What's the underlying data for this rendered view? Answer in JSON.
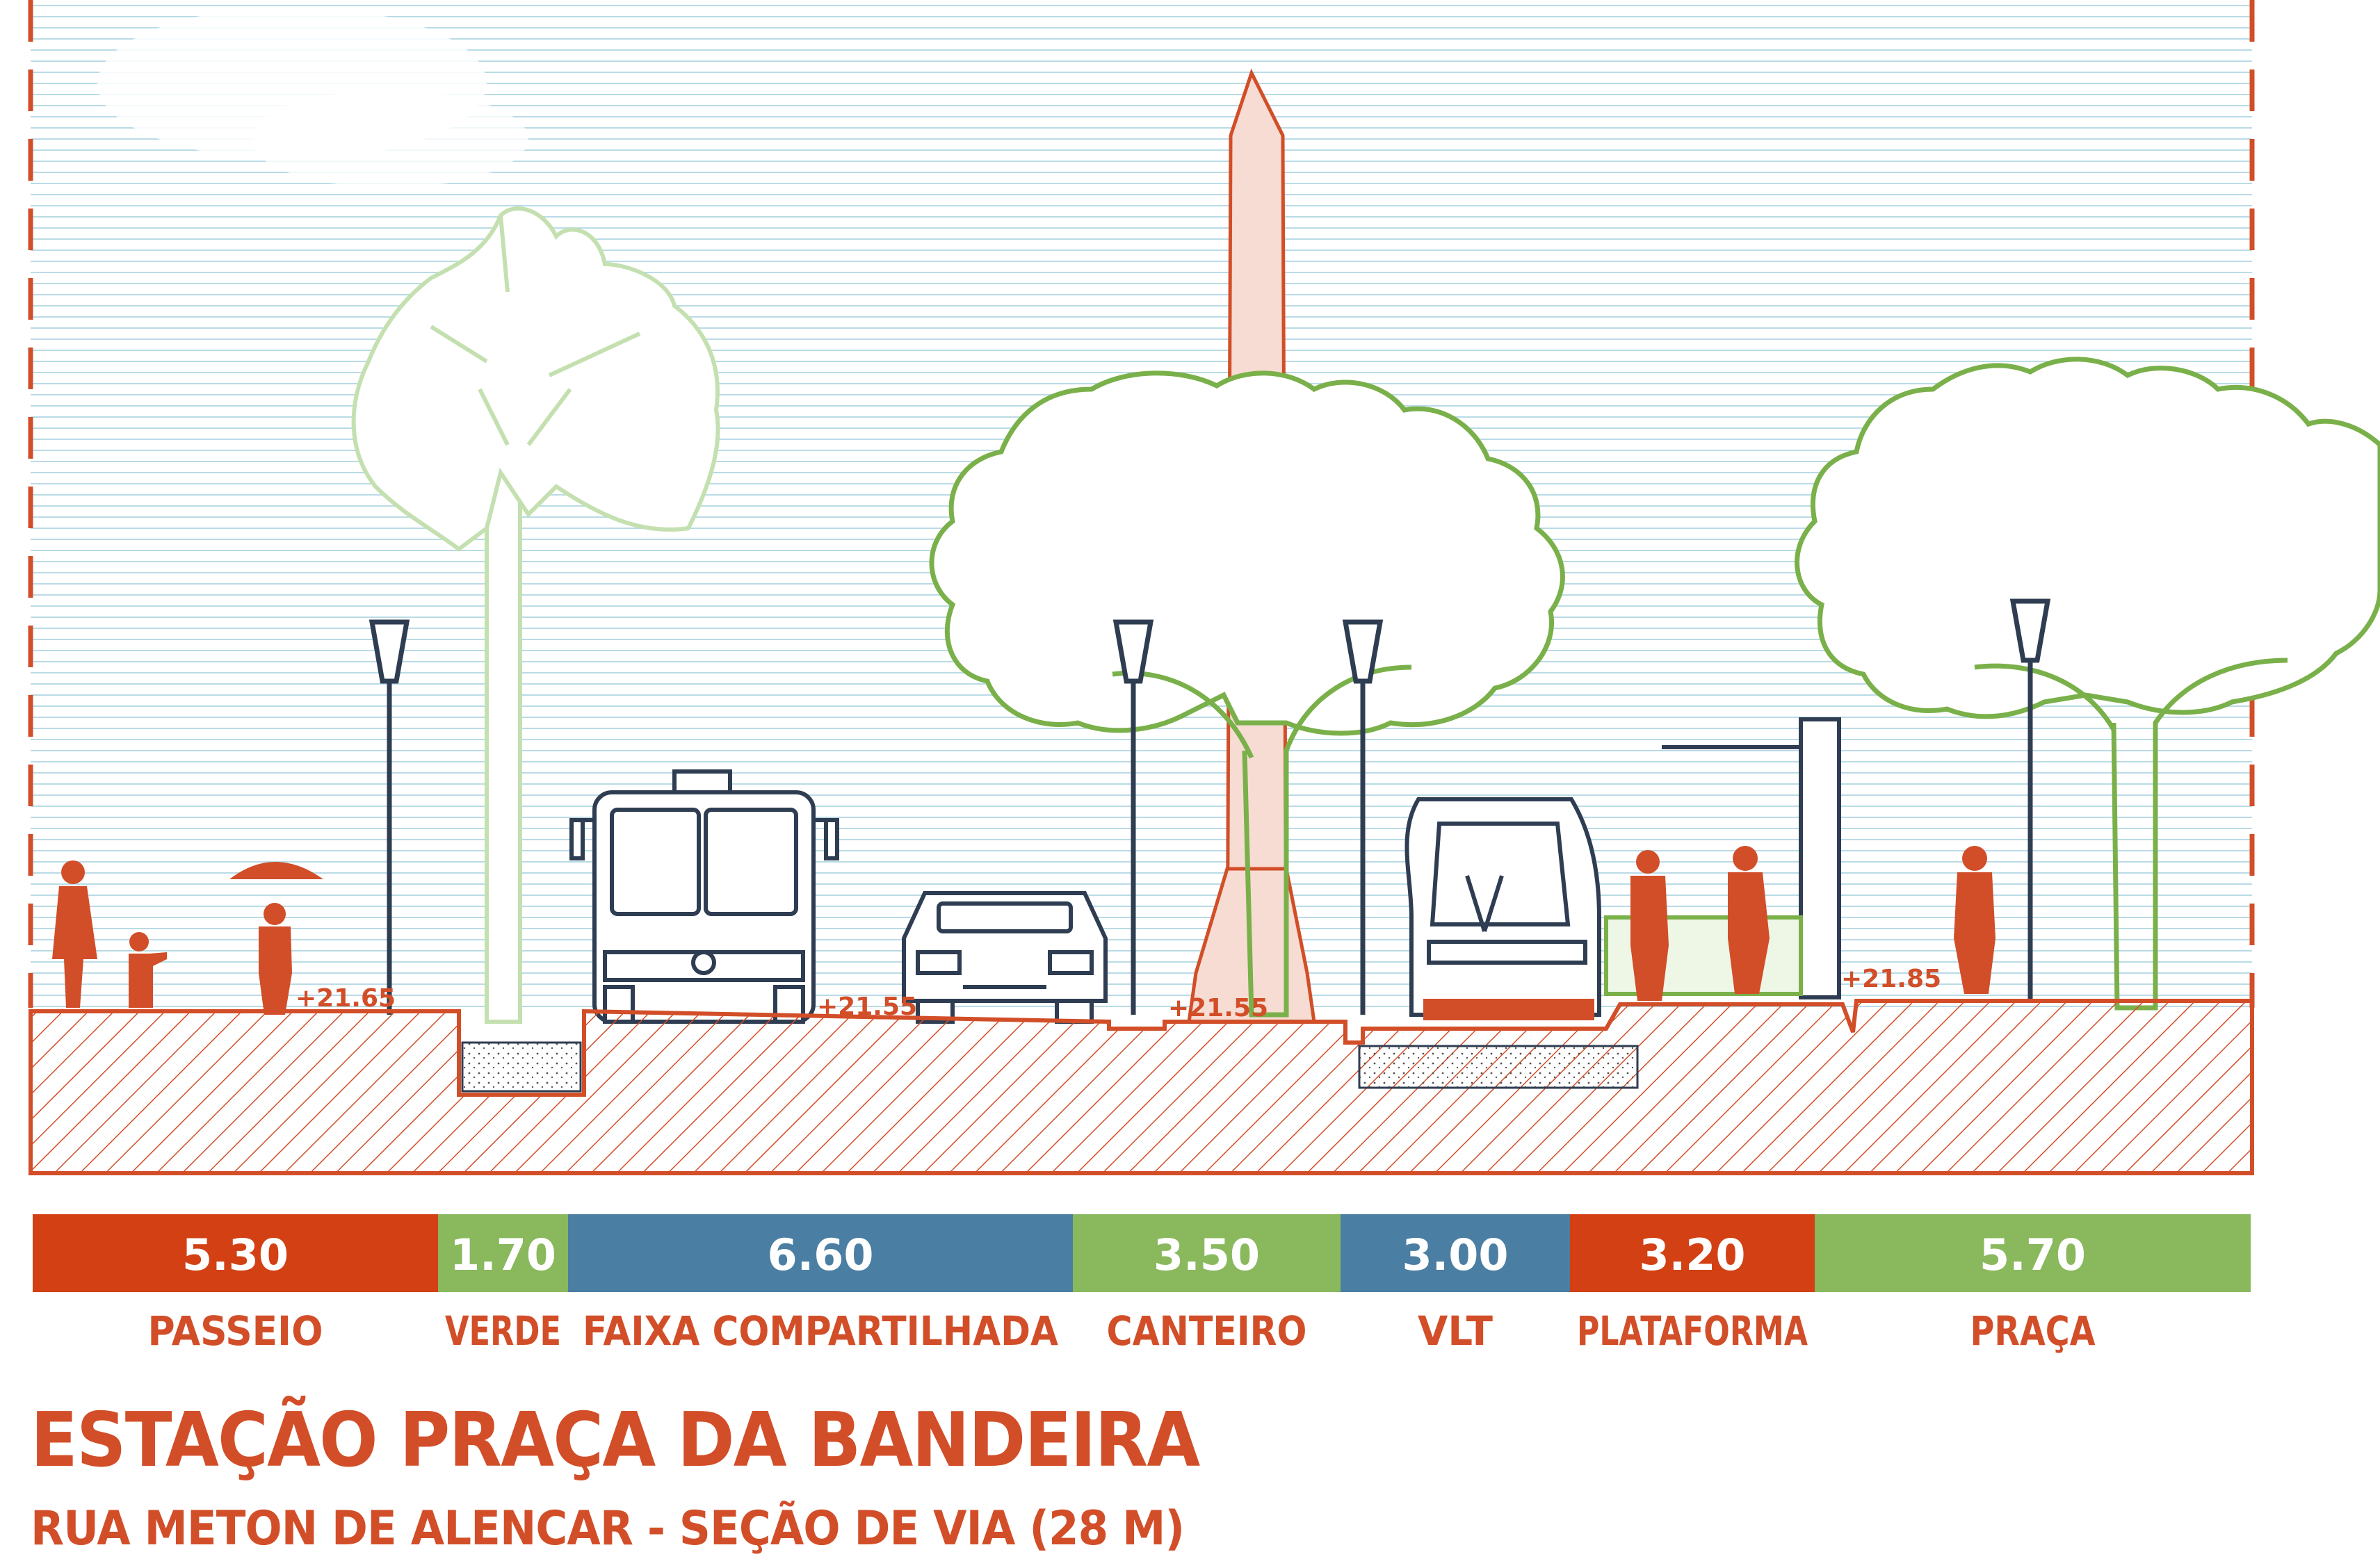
{
  "title": "ESTAÇÃO PRAÇA DA BANDEIRA",
  "subtitle": "RUA METON DE ALENCAR  - SEÇÃO DE VIA (28 M)",
  "levels": [
    {
      "label": "+21.65"
    },
    {
      "label": "+21.55"
    },
    {
      "label": "+21.55"
    },
    {
      "label": "+21.85"
    }
  ],
  "segments": [
    {
      "width": "5.30",
      "name": "PASSEIO",
      "color": "#d24014"
    },
    {
      "width": "1.70",
      "name": "VERDE",
      "color": "#8ab85d"
    },
    {
      "width": "6.60",
      "name": "FAIXA COMPARTILHADA",
      "color": "#4a7ea2"
    },
    {
      "width": "3.50",
      "name": "CANTEIRO",
      "color": "#8ab85d"
    },
    {
      "width": "3.00",
      "name": "VLT",
      "color": "#4a7ea2"
    },
    {
      "width": "3.20",
      "name": "PLATAFORMA",
      "color": "#d24014"
    },
    {
      "width": "5.70",
      "name": "PRAÇA",
      "color": "#8ab85d"
    }
  ],
  "colors": {
    "accent": "#d24e28",
    "sky_lines": "#b9dbe6",
    "tree_green": "#7ab04a",
    "palm_green": "#c4e0b0",
    "vehicle_stroke": "#2f3d52"
  }
}
